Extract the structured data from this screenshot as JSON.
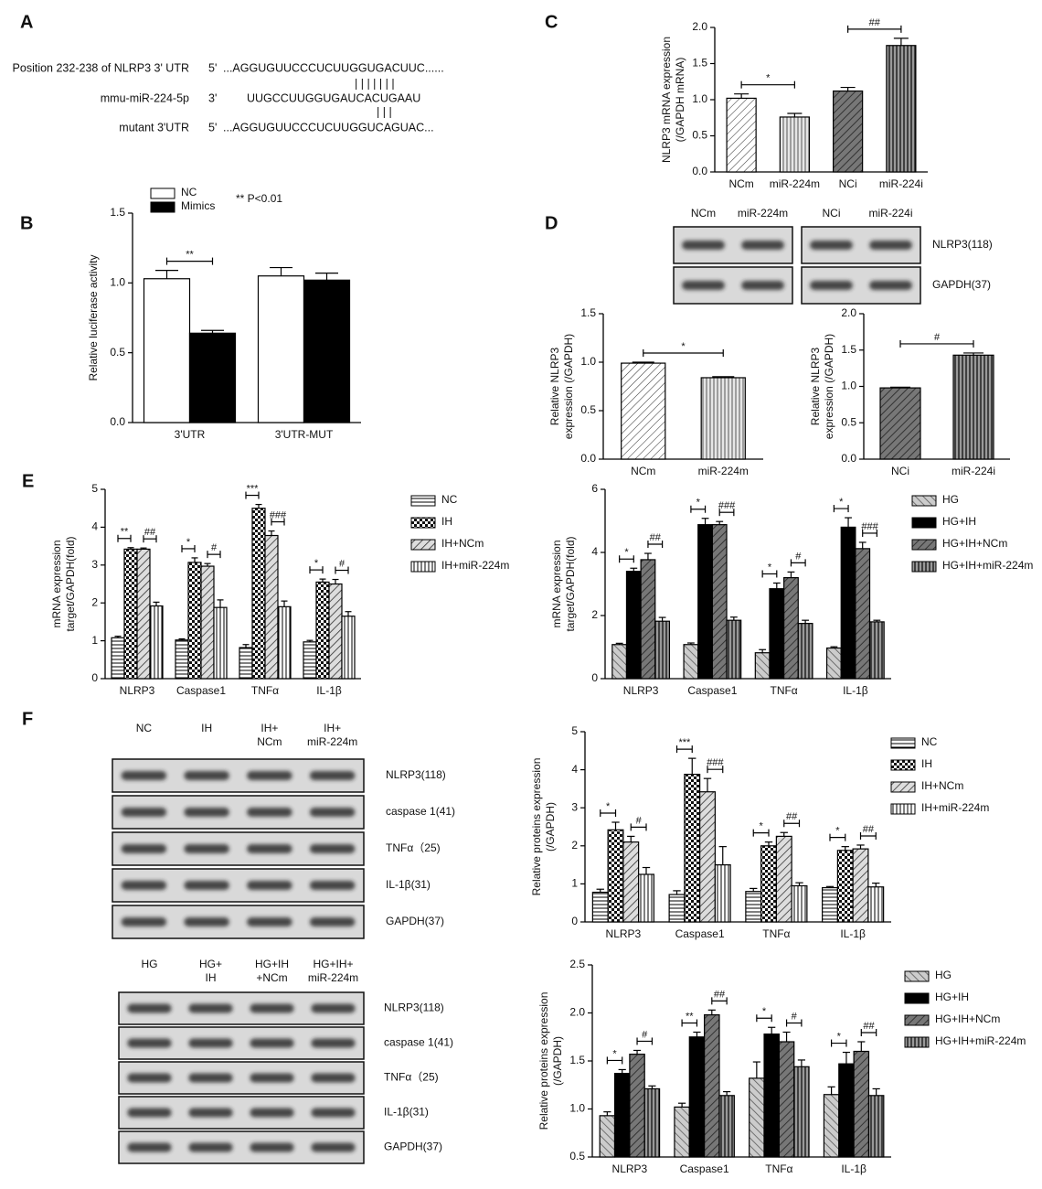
{
  "panel_labels": [
    "A",
    "B",
    "C",
    "D",
    "E",
    "F"
  ],
  "sequence": {
    "rows": [
      {
        "name": "Position 232-238 of NLRP3 3' UTR",
        "end": "5'",
        "seq": "...AGGUGUUCCCUCUUGGUGACUUC......"
      },
      {
        "name": "mmu-miR-224-5p",
        "end": "3'",
        "seq": "UUGCCUUGGUGAUCACUGAAU"
      },
      {
        "name": "mutant 3'UTR",
        "end": "5'",
        "seq": "...AGGUGUUCCCUCUUGGUCAGUAC..."
      }
    ],
    "pairing": [
      "| | | | | | |",
      "|    |    |"
    ]
  },
  "blots": [
    {
      "lanes": [
        [
          "NCm"
        ],
        [
          "miR-224m"
        ],
        [
          "NCi"
        ],
        [
          "miR-224i"
        ]
      ],
      "bands": [
        "NLRP3(118)",
        "GAPDH(37)"
      ]
    },
    {
      "lanes": [
        [
          "NC"
        ],
        [
          "IH"
        ],
        [
          "IH+",
          "NCm"
        ],
        [
          "IH+",
          "miR-224m"
        ]
      ],
      "bands": [
        "NLRP3(118)",
        "caspase 1(41)",
        "TNFα（25)",
        "IL-1β(31)",
        "GAPDH(37)"
      ]
    },
    {
      "lanes": [
        [
          "HG"
        ],
        [
          "HG+",
          "IH"
        ],
        [
          "HG+IH",
          "+NCm"
        ],
        [
          "HG+IH+",
          "miR-224m"
        ]
      ],
      "bands": [
        "NLRP3(118)",
        "caspase 1(41)",
        "TNFα（25)",
        "IL-1β(31)",
        "GAPDH(37)"
      ]
    }
  ],
  "chart_data": [
    {
      "type": "bar",
      "categories": [
        "3'UTR",
        "3'UTR-MUT"
      ],
      "series": [
        {
          "name": "NC",
          "color": "#ffffff",
          "values": [
            1.03,
            1.05
          ],
          "errors": [
            0.06,
            0.06
          ]
        },
        {
          "name": "Mimics",
          "color": "#000000",
          "values": [
            0.64,
            1.02
          ],
          "errors": [
            0.02,
            0.05
          ]
        }
      ],
      "ylabel": [
        "Relative luciferase activity"
      ],
      "ylim": [
        0,
        1.5
      ],
      "yticks": [
        {
          "value": 0,
          "label": "0.0"
        },
        0.5,
        {
          "value": 1,
          "label": "1.0"
        },
        1.5
      ],
      "legend": "upper left",
      "annotation": "** P<0.01",
      "significance": [
        [
          "**"
        ],
        []
      ]
    },
    {
      "type": "bar",
      "categories": [
        "NCm",
        "miR-224m",
        "NCi",
        "miR-224i"
      ],
      "values": [
        1.02,
        0.76,
        1.12,
        1.75
      ],
      "errors": [
        0.06,
        0.05,
        0.05,
        0.1
      ],
      "patterns": [
        "diag-light",
        "vert-light",
        "diag-dark",
        "vert-dark"
      ],
      "ylabel": [
        "NLRP3 mRNA expression",
        "(/GAPDH mRNA)"
      ],
      "ylim": [
        0,
        2
      ],
      "yticks": [
        {
          "value": 0,
          "label": "0.0"
        },
        0.5,
        {
          "value": 1,
          "label": "1.0"
        },
        1.5,
        {
          "value": 2,
          "label": "2.0"
        }
      ],
      "significance": [
        "*",
        "##"
      ]
    },
    {
      "type": "bar",
      "categories": [
        "NCm",
        "miR-224m"
      ],
      "values": [
        0.99,
        0.84
      ],
      "errors": [
        0.01,
        0.01
      ],
      "patterns": [
        "diag-light",
        "vert-light"
      ],
      "ylabel": [
        "Relative NLRP3",
        "expression   (/GAPDH)"
      ],
      "ylim": [
        0,
        1.5
      ],
      "yticks": [
        {
          "value": 0,
          "label": "0.0"
        },
        0.5,
        {
          "value": 1,
          "label": "1.0"
        },
        1.5
      ],
      "significance": [
        "*"
      ]
    },
    {
      "type": "bar",
      "categories": [
        "NCi",
        "miR-224i"
      ],
      "values": [
        0.98,
        1.43
      ],
      "errors": [
        0.01,
        0.03
      ],
      "patterns": [
        "diag-dark",
        "vert-dark"
      ],
      "ylabel": [
        "Relative NLRP3",
        "expression   (/GAPDH)"
      ],
      "ylim": [
        0,
        2
      ],
      "yticks": [
        {
          "value": 0,
          "label": "0.0"
        },
        0.5,
        {
          "value": 1,
          "label": "1.0"
        },
        1.5,
        {
          "value": 2,
          "label": "2.0"
        }
      ],
      "significance": [
        "#"
      ]
    },
    {
      "type": "bar",
      "categories": [
        "NLRP3",
        "Caspase1",
        "TNFα",
        "IL-1β"
      ],
      "series": [
        {
          "name": "NC",
          "pattern": "horiz",
          "values": [
            1.08,
            1.02,
            0.82,
            0.97
          ],
          "errors": [
            0.04,
            0.03,
            0.08,
            0.04
          ]
        },
        {
          "name": "IH",
          "pattern": "checker",
          "values": [
            3.42,
            3.07,
            4.5,
            2.55
          ],
          "errors": [
            0.04,
            0.12,
            0.1,
            0.08
          ]
        },
        {
          "name": "IH+NCm",
          "pattern": "diag-gray",
          "values": [
            3.42,
            2.97,
            3.78,
            2.5
          ],
          "errors": [
            0.03,
            0.07,
            0.12,
            0.12
          ]
        },
        {
          "name": "IH+miR-224m",
          "pattern": "vert",
          "values": [
            1.92,
            1.88,
            1.9,
            1.65
          ],
          "errors": [
            0.1,
            0.2,
            0.15,
            0.12
          ]
        }
      ],
      "ylabel": [
        "mRNA expression",
        "target/GAPDH(fold)"
      ],
      "ylim": [
        0,
        5
      ],
      "yticks": [
        0,
        1,
        2,
        3,
        4,
        5
      ],
      "legend": "right",
      "significance": [
        [
          "**",
          "##"
        ],
        [
          "*",
          "#"
        ],
        [
          "***",
          "###"
        ],
        [
          "*",
          "#"
        ]
      ]
    },
    {
      "type": "bar",
      "categories": [
        "NLRP3",
        "Caspase1",
        "TNFα",
        "IL-1β"
      ],
      "series": [
        {
          "name": "HG",
          "pattern": "back-light",
          "values": [
            1.08,
            1.08,
            0.82,
            0.97
          ],
          "errors": [
            0.04,
            0.05,
            0.1,
            0.04
          ]
        },
        {
          "name": "HG+IH",
          "color": "#000000",
          "values": [
            3.4,
            4.88,
            2.85,
            4.8
          ],
          "errors": [
            0.1,
            0.2,
            0.18,
            0.3
          ]
        },
        {
          "name": "HG+IH+NCm",
          "pattern": "diag-dark",
          "values": [
            3.77,
            4.88,
            3.2,
            4.12
          ],
          "errors": [
            0.2,
            0.1,
            0.18,
            0.2
          ]
        },
        {
          "name": "HG+IH+miR-224m",
          "pattern": "vert-dark",
          "values": [
            1.82,
            1.85,
            1.75,
            1.8
          ],
          "errors": [
            0.12,
            0.1,
            0.1,
            0.05
          ]
        }
      ],
      "ylabel": [
        "mRNA expression",
        "target/GAPDH(fold)"
      ],
      "ylim": [
        0,
        6
      ],
      "yticks": [
        0,
        2,
        4,
        6
      ],
      "legend": "right",
      "significance": [
        [
          "*",
          "##"
        ],
        [
          "*",
          "###"
        ],
        [
          "*",
          "#"
        ],
        [
          "*",
          "###"
        ]
      ]
    },
    {
      "type": "bar",
      "categories": [
        "NLRP3",
        "Caspase1",
        "TNFα",
        "IL-1β"
      ],
      "series": [
        {
          "name": "NC",
          "pattern": "horiz",
          "values": [
            0.78,
            0.72,
            0.8,
            0.9
          ],
          "errors": [
            0.08,
            0.1,
            0.08,
            0.03
          ]
        },
        {
          "name": "IH",
          "pattern": "checker",
          "values": [
            2.42,
            3.88,
            2.0,
            1.88
          ],
          "errors": [
            0.2,
            0.42,
            0.1,
            0.1
          ]
        },
        {
          "name": "IH+NCm",
          "pattern": "diag-gray",
          "values": [
            2.1,
            3.42,
            2.25,
            1.92
          ],
          "errors": [
            0.15,
            0.35,
            0.1,
            0.1
          ]
        },
        {
          "name": "IH+miR-224m",
          "pattern": "vert",
          "values": [
            1.25,
            1.5,
            0.95,
            0.92
          ],
          "errors": [
            0.18,
            0.48,
            0.08,
            0.1
          ]
        }
      ],
      "ylabel": [
        "Relative proteins expression",
        "(/GAPDH)"
      ],
      "ylim": [
        0,
        5
      ],
      "yticks": [
        0,
        1,
        2,
        3,
        4,
        5
      ],
      "legend": "right",
      "significance": [
        [
          "*",
          "#"
        ],
        [
          "***",
          "###"
        ],
        [
          "*",
          "##"
        ],
        [
          "*",
          "##"
        ]
      ]
    },
    {
      "type": "bar",
      "categories": [
        "NLRP3",
        "Caspase1",
        "TNFα",
        "IL-1β"
      ],
      "series": [
        {
          "name": "HG",
          "pattern": "back-light",
          "values": [
            0.93,
            1.02,
            1.32,
            1.15
          ],
          "errors": [
            0.04,
            0.04,
            0.17,
            0.08
          ]
        },
        {
          "name": "HG+IH",
          "color": "#000000",
          "values": [
            1.37,
            1.75,
            1.78,
            1.47
          ],
          "errors": [
            0.04,
            0.05,
            0.07,
            0.12
          ]
        },
        {
          "name": "HG+IH+NCm",
          "pattern": "diag-dark",
          "values": [
            1.57,
            1.98,
            1.7,
            1.6
          ],
          "errors": [
            0.04,
            0.05,
            0.1,
            0.1
          ]
        },
        {
          "name": "HG+IH+miR-224m",
          "pattern": "vert-dark",
          "values": [
            1.21,
            1.14,
            1.44,
            1.14
          ],
          "errors": [
            0.03,
            0.04,
            0.07,
            0.07
          ]
        }
      ],
      "ylabel": [
        "Relative proteins expression",
        "(/GAPDH)"
      ],
      "ylim": [
        0.5,
        2.5
      ],
      "yticks": [
        0.5,
        {
          "value": 1,
          "label": "1.0"
        },
        1.5,
        {
          "value": 2,
          "label": "2.0"
        },
        2.5
      ],
      "legend": "right",
      "significance": [
        [
          "*",
          "#"
        ],
        [
          "**",
          "##"
        ],
        [
          "*",
          "#"
        ],
        [
          "*",
          "##"
        ]
      ]
    }
  ]
}
